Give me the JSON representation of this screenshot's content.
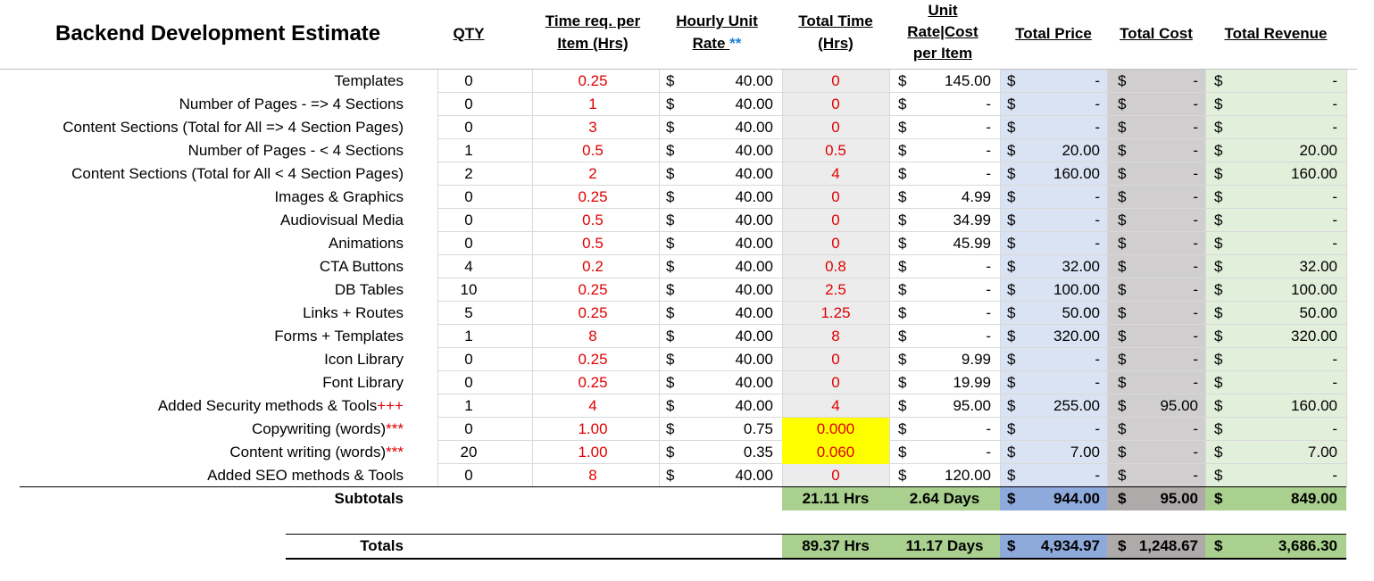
{
  "title": "Backend Development Estimate",
  "headers": {
    "qty": "QTY",
    "time_req": [
      "Time req. per",
      "Item (Hrs)"
    ],
    "hourly": [
      "Hourly Unit",
      "Rate",
      "**"
    ],
    "total_time": [
      "Total Time",
      "(Hrs)"
    ],
    "unit_rate": [
      "Unit",
      "Rate|Cost",
      "per Item"
    ],
    "total_price": "Total Price",
    "total_cost": "Total Cost",
    "total_revenue": "Total Revenue"
  },
  "currency": "$",
  "rows": [
    {
      "label": "Templates",
      "mark": "",
      "qty": "0",
      "time": "0.25",
      "rate": "40.00",
      "total_time": "0",
      "unit": "145.00",
      "price": "-",
      "cost": "-",
      "revenue": "-"
    },
    {
      "label": "Number of Pages - => 4 Sections",
      "mark": "",
      "qty": "0",
      "time": "1",
      "rate": "40.00",
      "total_time": "0",
      "unit": "-",
      "price": "-",
      "cost": "-",
      "revenue": "-"
    },
    {
      "label": "Content Sections (Total for All => 4 Section Pages)",
      "mark": "",
      "qty": "0",
      "time": "3",
      "rate": "40.00",
      "total_time": "0",
      "unit": "-",
      "price": "-",
      "cost": "-",
      "revenue": "-"
    },
    {
      "label": "Number of Pages - < 4 Sections",
      "mark": "",
      "qty": "1",
      "time": "0.5",
      "rate": "40.00",
      "total_time": "0.5",
      "unit": "-",
      "price": "20.00",
      "cost": "-",
      "revenue": "20.00"
    },
    {
      "label": "Content Sections (Total for All < 4 Section Pages)",
      "mark": "",
      "qty": "2",
      "time": "2",
      "rate": "40.00",
      "total_time": "4",
      "unit": "-",
      "price": "160.00",
      "cost": "-",
      "revenue": "160.00"
    },
    {
      "label": "Images & Graphics",
      "mark": "",
      "qty": "0",
      "time": "0.25",
      "rate": "40.00",
      "total_time": "0",
      "unit": "4.99",
      "price": "-",
      "cost": "-",
      "revenue": "-"
    },
    {
      "label": "Audiovisual Media",
      "mark": "",
      "qty": "0",
      "time": "0.5",
      "rate": "40.00",
      "total_time": "0",
      "unit": "34.99",
      "price": "-",
      "cost": "-",
      "revenue": "-"
    },
    {
      "label": "Animations",
      "mark": "",
      "qty": "0",
      "time": "0.5",
      "rate": "40.00",
      "total_time": "0",
      "unit": "45.99",
      "price": "-",
      "cost": "-",
      "revenue": "-"
    },
    {
      "label": "CTA Buttons",
      "mark": "",
      "qty": "4",
      "time": "0.2",
      "rate": "40.00",
      "total_time": "0.8",
      "unit": "-",
      "price": "32.00",
      "cost": "-",
      "revenue": "32.00"
    },
    {
      "label": "DB Tables",
      "mark": "",
      "qty": "10",
      "time": "0.25",
      "rate": "40.00",
      "total_time": "2.5",
      "unit": "-",
      "price": "100.00",
      "cost": "-",
      "revenue": "100.00"
    },
    {
      "label": "Links + Routes",
      "mark": "",
      "qty": "5",
      "time": "0.25",
      "rate": "40.00",
      "total_time": "1.25",
      "unit": "-",
      "price": "50.00",
      "cost": "-",
      "revenue": "50.00"
    },
    {
      "label": "Forms + Templates",
      "mark": "",
      "qty": "1",
      "time": "8",
      "rate": "40.00",
      "total_time": "8",
      "unit": "-",
      "price": "320.00",
      "cost": "-",
      "revenue": "320.00"
    },
    {
      "label": "Icon Library",
      "mark": "",
      "qty": "0",
      "time": "0.25",
      "rate": "40.00",
      "total_time": "0",
      "unit": "9.99",
      "price": "-",
      "cost": "-",
      "revenue": "-"
    },
    {
      "label": "Font Library",
      "mark": "",
      "qty": "0",
      "time": "0.25",
      "rate": "40.00",
      "total_time": "0",
      "unit": "19.99",
      "price": "-",
      "cost": "-",
      "revenue": "-"
    },
    {
      "label": "Added Security methods & Tools",
      "mark": "+++",
      "qty": "1",
      "time": "4",
      "rate": "40.00",
      "total_time": "4",
      "unit": "95.00",
      "price": "255.00",
      "cost": "95.00",
      "revenue": "160.00"
    },
    {
      "label": "Copywriting (words)",
      "mark": "***",
      "qty": "0",
      "time": "1.00",
      "rate": "0.75",
      "total_time": "0.000",
      "unit": "-",
      "price": "-",
      "cost": "-",
      "revenue": "-"
    },
    {
      "label": "Content writing (words)",
      "mark": "***",
      "qty": "20",
      "time": "1.00",
      "rate": "0.35",
      "total_time": "0.060",
      "unit": "-",
      "price": "7.00",
      "cost": "-",
      "revenue": "7.00"
    },
    {
      "label": "Added SEO methods & Tools",
      "mark": "",
      "qty": "0",
      "time": "8",
      "rate": "40.00",
      "total_time": "0",
      "unit": "120.00",
      "price": "-",
      "cost": "-",
      "revenue": "-"
    }
  ],
  "subtotals": {
    "label": "Subtotals",
    "hours": "21.11 Hrs",
    "days": "2.64 Days",
    "price": "944.00",
    "cost": "95.00",
    "revenue": "849.00"
  },
  "totals": {
    "label": "Totals",
    "hours": "89.37 Hrs",
    "days": "11.17 Days",
    "price": "4,934.97",
    "cost": "1,248.67",
    "revenue": "3,686.30"
  }
}
